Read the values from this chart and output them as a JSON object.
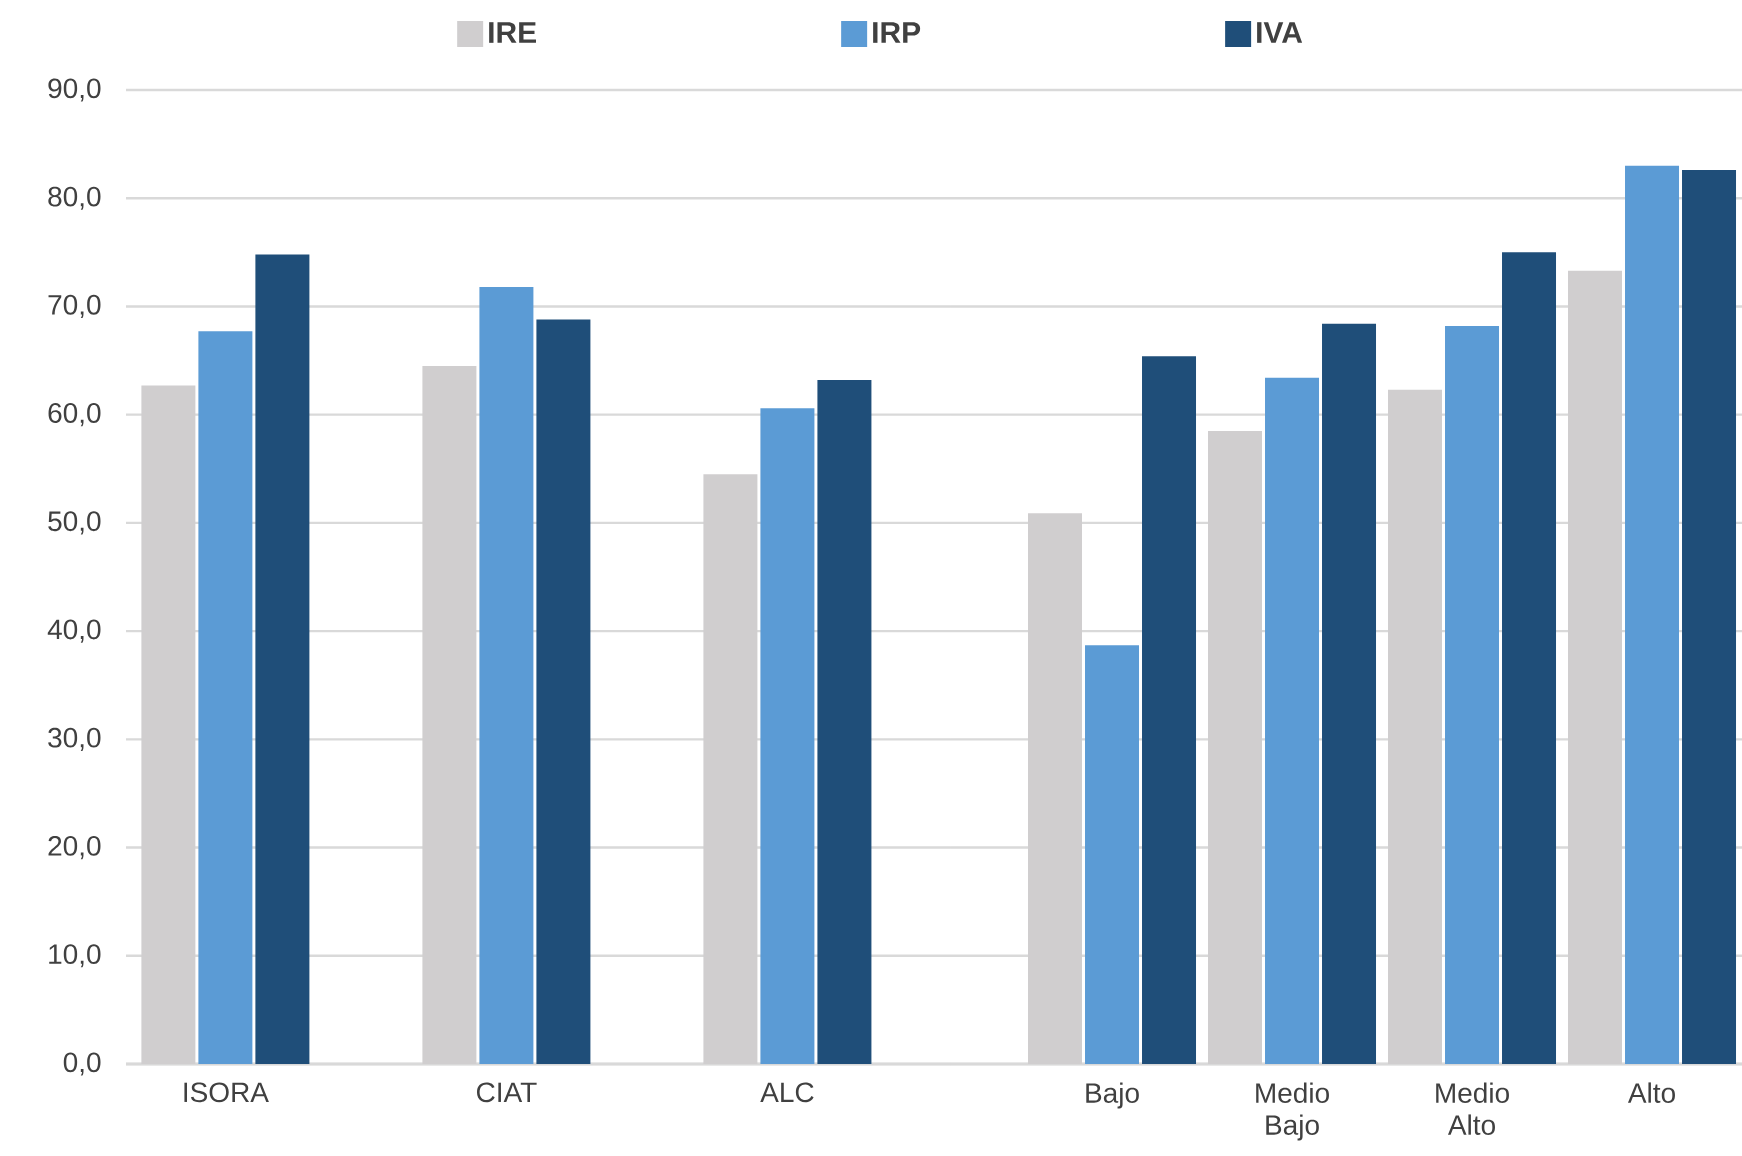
{
  "chart_data": [
    {
      "type": "bar",
      "categories": [
        "ISORA",
        "CIAT",
        "ALC"
      ],
      "series": [
        {
          "name": "IRE",
          "color": "#d0cecf",
          "values": [
            62.7,
            64.5,
            54.5
          ]
        },
        {
          "name": "IRP",
          "color": "#5b9bd5",
          "values": [
            67.7,
            71.8,
            60.6
          ]
        },
        {
          "name": "IVA",
          "color": "#1f4e79",
          "values": [
            74.8,
            68.8,
            63.2
          ]
        }
      ],
      "ylim": [
        0,
        90
      ],
      "yticks": [
        {
          "value": 0,
          "label": "0,0"
        },
        {
          "value": 10,
          "label": "10,0"
        },
        {
          "value": 20,
          "label": "20,0"
        },
        {
          "value": 30,
          "label": "30,0"
        },
        {
          "value": 40,
          "label": "40,0"
        },
        {
          "value": 50,
          "label": "50,0"
        },
        {
          "value": 60,
          "label": "60,0"
        },
        {
          "value": 70,
          "label": "70,0"
        },
        {
          "value": 80,
          "label": "80,0"
        },
        {
          "value": 90,
          "label": "90,0"
        }
      ],
      "grid": "y",
      "legend": "top"
    },
    {
      "type": "bar",
      "categories": [
        "Bajo",
        "Medio Bajo",
        "Medio Alto",
        "Alto"
      ],
      "series": [
        {
          "color": "#d0cecf",
          "values": [
            50.9,
            58.5,
            62.3,
            73.3
          ]
        },
        {
          "color": "#5b9bd5",
          "values": [
            38.7,
            63.4,
            68.2,
            83.0
          ]
        },
        {
          "color": "#1f4e79",
          "values": [
            65.4,
            68.4,
            75.0,
            82.6
          ]
        }
      ],
      "ylim": [
        0,
        90
      ],
      "yticks": [
        0,
        10,
        20,
        30,
        40,
        50,
        60,
        70,
        80,
        90
      ],
      "grid": "y",
      "tick_labels": "x"
    }
  ]
}
